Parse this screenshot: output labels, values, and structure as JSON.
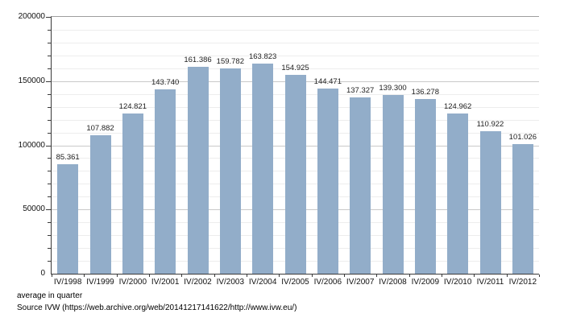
{
  "chart_data": {
    "type": "bar",
    "title": "",
    "xlabel": "",
    "ylabel": "",
    "categories": [
      "IV/1998",
      "IV/1999",
      "IV/2000",
      "IV/2001",
      "IV/2002",
      "IV/2003",
      "IV/2004",
      "IV/2005",
      "IV/2006",
      "IV/2007",
      "IV/2008",
      "IV/2009",
      "IV/2010",
      "IV/2011",
      "IV/2012"
    ],
    "values": [
      85361,
      107882,
      124821,
      143740,
      161386,
      159782,
      163823,
      154925,
      144471,
      137327,
      139300,
      136278,
      124962,
      110922,
      101026
    ],
    "value_labels": [
      "85.361",
      "107.882",
      "124.821",
      "143.740",
      "161.386",
      "159.782",
      "163.823",
      "154.925",
      "144.471",
      "137.327",
      "139.300",
      "136.278",
      "124.962",
      "110.922",
      "101.026"
    ],
    "ylim": [
      0,
      200000
    ],
    "ytick_major_step": 50000,
    "ytick_minor_step": 10000,
    "ytick_labels": [
      "0",
      "50000",
      "100000",
      "150000",
      "200000"
    ],
    "grid": true,
    "legend": "none",
    "bar_color": "#92adc9"
  },
  "footer": {
    "caption": "average in quarter",
    "source": "Source IVW (https://web.archive.org/web/20141217141622/http://www.ivw.eu/)"
  }
}
